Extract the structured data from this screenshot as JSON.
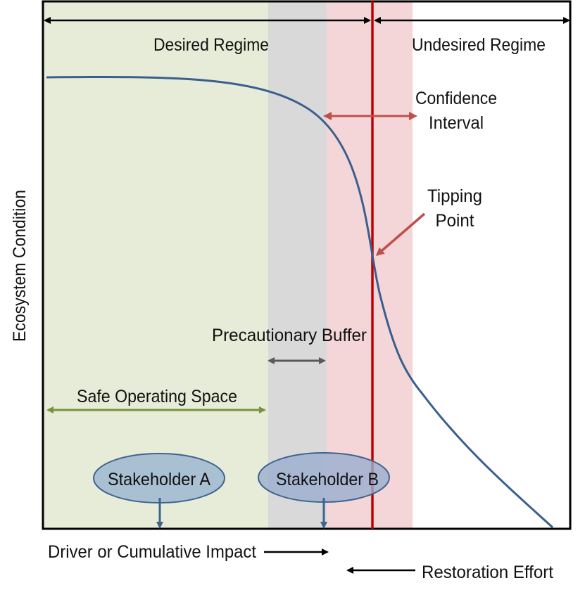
{
  "labels": {
    "desired_regime": "Desired Regime",
    "undesired_regime": "Undesired Regime",
    "confidence_interval_line1": "Confidence",
    "confidence_interval_line2": "Interval",
    "tipping_point_line1": "Tipping",
    "tipping_point_line2": "Point",
    "precautionary_buffer": "Precautionary Buffer",
    "safe_operating_space": "Safe Operating Space",
    "stakeholder_a": "Stakeholder A",
    "stakeholder_b": "Stakeholder B",
    "y_axis": "Ecosystem Condition",
    "x_driver": "Driver or Cumulative Impact",
    "x_restoration": "Restoration Effort"
  },
  "colors": {
    "safe_space": "#e6ecd7",
    "buffer": "#d9d9d9",
    "confidence": "#f5d6d8",
    "tipping_line": "#c00000",
    "curve": "#3a5f8f",
    "safe_arrow": "#77933c",
    "buffer_arrow": "#595959",
    "confidence_arrow": "#c0504d",
    "stakeholder_a_fill": "#a9c0d2",
    "stakeholder_b_fill": "#9aaed0",
    "stakeholder_stroke": "#3e638f",
    "stakeholder_pointer": "#3e638f"
  }
}
